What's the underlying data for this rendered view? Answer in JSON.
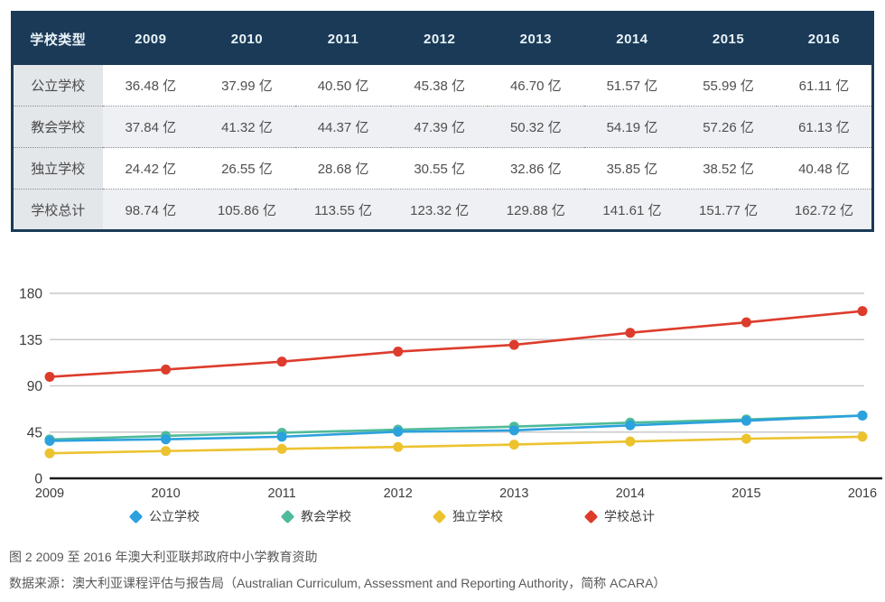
{
  "table": {
    "header": [
      "学校类型",
      "2009",
      "2010",
      "2011",
      "2012",
      "2013",
      "2014",
      "2015",
      "2016"
    ],
    "rows": [
      {
        "label": "公立学校",
        "cells": [
          "36.48 亿",
          "37.99 亿",
          "40.50 亿",
          "45.38 亿",
          "46.70 亿",
          "51.57 亿",
          "55.99 亿",
          "61.11 亿"
        ]
      },
      {
        "label": "教会学校",
        "cells": [
          "37.84 亿",
          "41.32 亿",
          "44.37 亿",
          "47.39 亿",
          "50.32 亿",
          "54.19 亿",
          "57.26 亿",
          "61.13 亿"
        ]
      },
      {
        "label": "独立学校",
        "cells": [
          "24.42 亿",
          "26.55 亿",
          "28.68 亿",
          "30.55 亿",
          "32.86 亿",
          "35.85 亿",
          "38.52 亿",
          "40.48 亿"
        ]
      },
      {
        "label": "学校总计",
        "cells": [
          "98.74 亿",
          "105.86 亿",
          "113.55 亿",
          "123.32 亿",
          "129.88 亿",
          "141.61 亿",
          "151.77 亿",
          "162.72 亿"
        ]
      }
    ]
  },
  "chart_data": {
    "type": "line",
    "x": [
      2009,
      2010,
      2011,
      2012,
      2013,
      2014,
      2015,
      2016
    ],
    "series": [
      {
        "name": "公立学校",
        "color": "#2ba1de",
        "values": [
          36.48,
          37.99,
          40.5,
          45.38,
          46.7,
          51.57,
          55.99,
          61.11
        ]
      },
      {
        "name": "教会学校",
        "color": "#4fbb9a",
        "values": [
          37.84,
          41.32,
          44.37,
          47.39,
          50.32,
          54.19,
          57.26,
          61.13
        ]
      },
      {
        "name": "独立学校",
        "color": "#ecc32f",
        "values": [
          24.42,
          26.55,
          28.68,
          30.55,
          32.86,
          35.85,
          38.52,
          40.48
        ]
      },
      {
        "name": "学校总计",
        "color": "#dd3c2c",
        "values": [
          98.74,
          105.86,
          113.55,
          123.32,
          129.88,
          141.61,
          151.77,
          162.72
        ]
      }
    ],
    "draw_order": [
      1,
      0,
      2,
      3
    ],
    "ylim": [
      0,
      180
    ],
    "yticks": [
      0,
      45,
      90,
      135,
      180
    ],
    "grid": true,
    "legend_position": "bottom",
    "unit": "亿",
    "title": "",
    "xlabel": "",
    "ylabel": ""
  },
  "caption": {
    "line1": "图 2 2009 至 2016 年澳大利亚联邦政府中小学教育资助",
    "line2": "数据来源：澳大利亚课程评估与报告局（Australian Curriculum, Assessment and Reporting Authority，简称 ACARA）"
  },
  "colors": {
    "header_bg": "#1a3a57",
    "header_text": "#eaf3f8",
    "row_alt_bg": "#eef0f3",
    "label_col_bg": "#e4e7ea",
    "gridline": "#c9c9c9",
    "axis": "#1b1b1b",
    "tick_text": "#3c3c3c"
  }
}
